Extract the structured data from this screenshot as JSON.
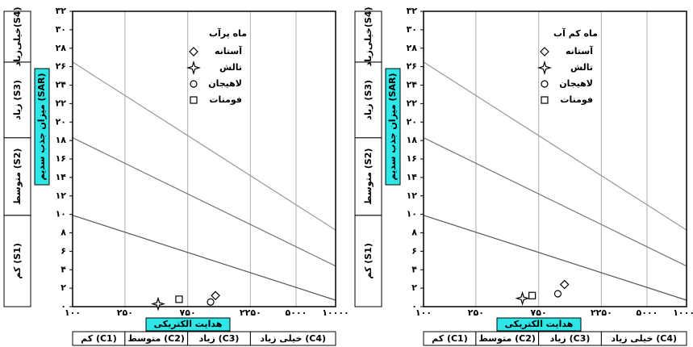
{
  "chart_data": [
    {
      "type": "scatter",
      "title": "ماه پرآب",
      "x_label": "هدایت الکتریکی",
      "y_label": "میزان جذب سدیم (SAR)",
      "y_classes": [
        "کم (S1)",
        "متوسط (S2)",
        "زیاد (S3)",
        "خیلی‌زیاد(S4)"
      ],
      "x_classes": [
        "کم (C1)",
        "متوسط (C2)",
        "زیاد (C3)",
        "خیلی زیاد (C4)"
      ],
      "log_x": true,
      "grid": true,
      "xlim": [
        100,
        10000
      ],
      "ylim": [
        0,
        32
      ],
      "xticks": [
        {
          "value": 100,
          "label": "۱۰۰"
        },
        {
          "value": 250,
          "label": "۲۵۰"
        },
        {
          "value": 750,
          "label": "۷۵۰"
        },
        {
          "value": 2250,
          "label": "۲۲۵۰"
        },
        {
          "value": 5000,
          "label": "۵۰۰۰"
        },
        {
          "value": 10000,
          "label": "۱۰۰۰۰"
        }
      ],
      "yticks": [
        {
          "value": 0,
          "label": "۰"
        },
        {
          "value": 2,
          "label": "۲"
        },
        {
          "value": 4,
          "label": "۴"
        },
        {
          "value": 6,
          "label": "۶"
        },
        {
          "value": 8,
          "label": "۸"
        },
        {
          "value": 10,
          "label": "۱۰"
        },
        {
          "value": 12,
          "label": "۱۲"
        },
        {
          "value": 14,
          "label": "۱۴"
        },
        {
          "value": 16,
          "label": "۱۶"
        },
        {
          "value": 18,
          "label": "۱۸"
        },
        {
          "value": 20,
          "label": "۲۰"
        },
        {
          "value": 22,
          "label": "۲۲"
        },
        {
          "value": 24,
          "label": "۲۴"
        },
        {
          "value": 26,
          "label": "۲۶"
        },
        {
          "value": 28,
          "label": "۲۸"
        },
        {
          "value": 30,
          "label": "۳۰"
        },
        {
          "value": 32,
          "label": "۳۲"
        }
      ],
      "lines": [
        {
          "color": "#999",
          "x": [
            100,
            10000
          ],
          "values": [
            26.5,
            8.3
          ]
        },
        {
          "color": "#777",
          "x": [
            100,
            10000
          ],
          "values": [
            18.3,
            4.4
          ]
        },
        {
          "color": "#555",
          "x": [
            100,
            10000
          ],
          "values": [
            9.9,
            0.7
          ]
        }
      ],
      "series": [
        {
          "name": "آستانه",
          "marker": "diamond",
          "color": "#000",
          "x": [
            1220
          ],
          "values": [
            1.2
          ]
        },
        {
          "name": "تالش",
          "marker": "star",
          "color": "#000",
          "x": [
            447
          ],
          "values": [
            0.3
          ]
        },
        {
          "name": "لاهیجان",
          "marker": "circle",
          "color": "#000",
          "x": [
            1120
          ],
          "values": [
            0.5
          ]
        },
        {
          "name": "فومنات",
          "marker": "square",
          "color": "#000",
          "x": [
            645
          ],
          "values": [
            0.8
          ]
        }
      ]
    },
    {
      "type": "scatter",
      "title": "ماه کم آب",
      "x_label": "هدایت الکتریکی",
      "y_label": "میزان جذب سدیم (SAR)",
      "y_classes": [
        "کم (S1)",
        "متوسط (S2)",
        "زیاد (S3)",
        "خیلی‌زیاد(S4)"
      ],
      "x_classes": [
        "کم (C1)",
        "متوسط (C2)",
        "زیاد (C3)",
        "خیلی زیاد (C4)"
      ],
      "log_x": true,
      "grid": true,
      "xlim": [
        100,
        10000
      ],
      "ylim": [
        0,
        32
      ],
      "xticks": [
        {
          "value": 100,
          "label": "۱۰۰"
        },
        {
          "value": 250,
          "label": "۲۵۰"
        },
        {
          "value": 750,
          "label": "۷۵۰"
        },
        {
          "value": 2250,
          "label": "۲۲۵۰"
        },
        {
          "value": 5000,
          "label": "۵۰۰۰"
        },
        {
          "value": 10000,
          "label": "۱۰۰۰۰"
        }
      ],
      "yticks": [
        {
          "value": 0,
          "label": "۰"
        },
        {
          "value": 2,
          "label": "۲"
        },
        {
          "value": 4,
          "label": "۴"
        },
        {
          "value": 6,
          "label": "۶"
        },
        {
          "value": 8,
          "label": "۸"
        },
        {
          "value": 10,
          "label": "۱۰"
        },
        {
          "value": 12,
          "label": "۱۲"
        },
        {
          "value": 14,
          "label": "۱۴"
        },
        {
          "value": 16,
          "label": "۱۶"
        },
        {
          "value": 18,
          "label": "۱۸"
        },
        {
          "value": 20,
          "label": "۲۰"
        },
        {
          "value": 22,
          "label": "۲۲"
        },
        {
          "value": 24,
          "label": "۲۴"
        },
        {
          "value": 26,
          "label": "۲۶"
        },
        {
          "value": 28,
          "label": "۲۸"
        },
        {
          "value": 30,
          "label": "۳۰"
        },
        {
          "value": 32,
          "label": "۳۲"
        }
      ],
      "lines": [
        {
          "color": "#999",
          "x": [
            100,
            10000
          ],
          "values": [
            26.5,
            8.3
          ]
        },
        {
          "color": "#777",
          "x": [
            100,
            10000
          ],
          "values": [
            18.3,
            4.4
          ]
        },
        {
          "color": "#555",
          "x": [
            100,
            10000
          ],
          "values": [
            9.9,
            0.7
          ]
        }
      ],
      "series": [
        {
          "name": "آستانه",
          "marker": "diamond",
          "color": "#000",
          "x": [
            1180
          ],
          "values": [
            2.4
          ]
        },
        {
          "name": "تالش",
          "marker": "star",
          "color": "#000",
          "x": [
            565
          ],
          "values": [
            0.9
          ]
        },
        {
          "name": "لاهیجان",
          "marker": "circle",
          "color": "#000",
          "x": [
            1050
          ],
          "values": [
            1.4
          ]
        },
        {
          "name": "فومنات",
          "marker": "square",
          "color": "#000",
          "x": [
            670
          ],
          "values": [
            1.2
          ]
        }
      ]
    }
  ]
}
